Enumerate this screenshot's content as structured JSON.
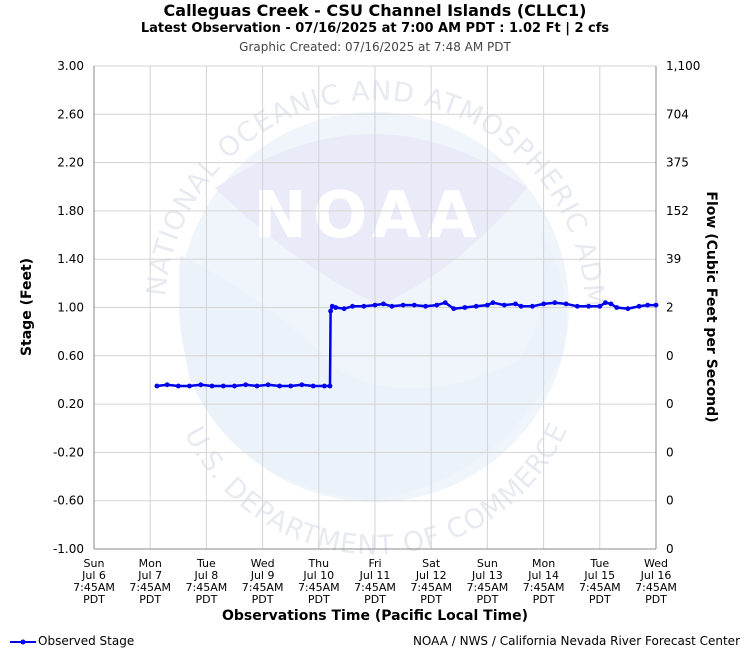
{
  "header": {
    "title": "Calleguas Creek - CSU Channel Islands (CLLC1)",
    "latest": "Latest Observation - 07/16/2025 at 7:00 AM PDT : 1.02 Ft | 2 cfs",
    "created": "Graphic Created: 07/16/2025 at 7:48 AM PDT"
  },
  "watermark": {
    "logo_text": "NOAA",
    "ring_top": "NATIONAL OCEANIC AND ATMOSPHERIC ADMINISTRATION",
    "ring_bottom": "U.S. DEPARTMENT OF COMMERCE"
  },
  "legend": {
    "label": "Observed Stage",
    "color": "#0000ee"
  },
  "footer": {
    "credit": "NOAA / NWS / California Nevada River Forecast Center"
  },
  "chart_data": {
    "type": "line",
    "xlabel": "Observations Time (Pacific Local Time)",
    "ylabel": "Stage (Feet)",
    "y2label": "Flow (Cubic Feet per Second)",
    "ylim": [
      -1.0,
      3.0
    ],
    "xlim": [
      0,
      10
    ],
    "grid": true,
    "legend_position": "bottom-left",
    "yticks": [
      "3.00",
      "2.60",
      "2.20",
      "1.80",
      "1.40",
      "1.00",
      "0.60",
      "0.20",
      "-0.20",
      "-0.60",
      "-1.00"
    ],
    "y2ticks": [
      "1,100",
      "704",
      "375",
      "152",
      "39",
      "2",
      "0",
      "0",
      "0",
      "0",
      "0"
    ],
    "xticks": [
      [
        "Sun",
        "Jul 6",
        "7:45AM",
        "PDT"
      ],
      [
        "Mon",
        "Jul 7",
        "7:45AM",
        "PDT"
      ],
      [
        "Tue",
        "Jul 8",
        "7:45AM",
        "PDT"
      ],
      [
        "Wed",
        "Jul 9",
        "7:45AM",
        "PDT"
      ],
      [
        "Thu",
        "Jul 10",
        "7:45AM",
        "PDT"
      ],
      [
        "Fri",
        "Jul 11",
        "7:45AM",
        "PDT"
      ],
      [
        "Sat",
        "Jul 12",
        "7:45AM",
        "PDT"
      ],
      [
        "Sun",
        "Jul 13",
        "7:45AM",
        "PDT"
      ],
      [
        "Mon",
        "Jul 14",
        "7:45AM",
        "PDT"
      ],
      [
        "Tue",
        "Jul 15",
        "7:45AM",
        "PDT"
      ],
      [
        "Wed",
        "Jul 16",
        "7:45AM",
        "PDT"
      ]
    ],
    "series": [
      {
        "name": "Observed Stage",
        "color": "#0000ee",
        "x": [
          1.12,
          1.3,
          1.5,
          1.7,
          1.9,
          2.1,
          2.3,
          2.5,
          2.7,
          2.9,
          3.1,
          3.3,
          3.5,
          3.7,
          3.9,
          4.1,
          4.2,
          4.21,
          4.24,
          4.3,
          4.45,
          4.6,
          4.8,
          5.0,
          5.15,
          5.3,
          5.5,
          5.7,
          5.9,
          6.1,
          6.25,
          6.4,
          6.6,
          6.8,
          7.0,
          7.1,
          7.3,
          7.5,
          7.6,
          7.8,
          8.0,
          8.2,
          8.4,
          8.6,
          8.8,
          9.0,
          9.1,
          9.2,
          9.3,
          9.5,
          9.7,
          9.85,
          10.0
        ],
        "values": [
          0.35,
          0.36,
          0.35,
          0.35,
          0.36,
          0.35,
          0.35,
          0.35,
          0.36,
          0.35,
          0.36,
          0.35,
          0.35,
          0.36,
          0.35,
          0.35,
          0.35,
          0.97,
          1.01,
          1.0,
          0.99,
          1.01,
          1.01,
          1.02,
          1.03,
          1.01,
          1.02,
          1.02,
          1.01,
          1.02,
          1.04,
          0.99,
          1.0,
          1.01,
          1.02,
          1.04,
          1.02,
          1.03,
          1.01,
          1.01,
          1.03,
          1.04,
          1.03,
          1.01,
          1.01,
          1.01,
          1.04,
          1.03,
          1.0,
          0.99,
          1.01,
          1.02,
          1.02
        ]
      }
    ]
  }
}
